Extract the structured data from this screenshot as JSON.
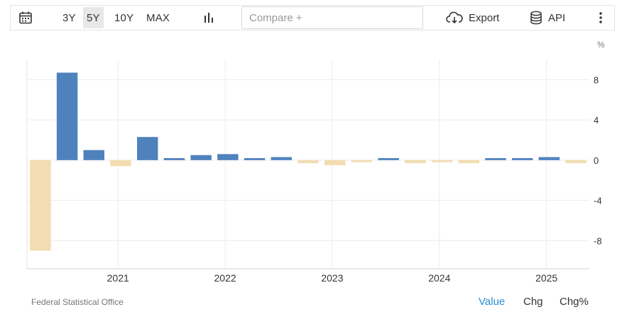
{
  "toolbar": {
    "calendar_icon": "calendar-icon",
    "ranges": [
      "3Y",
      "5Y",
      "10Y",
      "MAX"
    ],
    "active_range": "5Y",
    "chart_type_icon": "bar-chart-icon",
    "compare_placeholder": "Compare +",
    "export_label": "Export",
    "export_icon": "cloud-download-icon",
    "api_label": "API",
    "api_icon": "database-icon",
    "more_icon": "vertical-dots-icon"
  },
  "chart_data": {
    "type": "bar",
    "unit": "%",
    "x_tick_labels": [
      "2021",
      "2022",
      "2023",
      "2024",
      "2025"
    ],
    "y_ticks": [
      -8,
      -4,
      0,
      4,
      8
    ],
    "ylim": [
      -10.8,
      10
    ],
    "grid": true,
    "positive_color": "#4f81bd",
    "negative_color": "#f3dcb1",
    "values": [
      -9.0,
      8.7,
      1.0,
      -0.6,
      2.3,
      0.2,
      0.5,
      0.6,
      0.2,
      0.3,
      -0.3,
      -0.5,
      -0.2,
      0.2,
      -0.3,
      -0.2,
      -0.3,
      0.2,
      0.2,
      0.3,
      -0.3
    ]
  },
  "footer": {
    "source": "Federal Statistical Office",
    "tabs": [
      "Value",
      "Chg",
      "Chg%"
    ],
    "active_tab": "Value",
    "active_color": "#2a8fd6"
  }
}
